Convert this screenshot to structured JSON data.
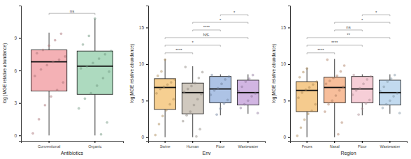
{
  "chart_data": [
    {
      "type": "box",
      "x_label": "Antibiotics",
      "y_label": "log (MGE relative abundance)",
      "categories": [
        "Conventional",
        "Organic"
      ],
      "colors": [
        "#f2a3a8",
        "#9fd3b4"
      ],
      "ylim": [
        -0.5,
        12
      ],
      "yticks": [
        0,
        3,
        6,
        9
      ],
      "boxes": [
        {
          "whisker_low": 0,
          "q1": 4.1,
          "median": 6.8,
          "q3": 7.9,
          "whisker_high": 9.5
        },
        {
          "whisker_low": 0,
          "q1": 3.8,
          "median": 6.4,
          "q3": 7.8,
          "whisker_high": 10.8
        }
      ],
      "points": [
        [
          0.2,
          1.5,
          2.8,
          3.6,
          4.2,
          4.9,
          5.5,
          6.1,
          6.5,
          6.8,
          7.0,
          7.3,
          7.6,
          7.9,
          8.3,
          8.8,
          9.4
        ],
        [
          0.1,
          1.2,
          2.5,
          3.4,
          3.9,
          4.6,
          5.3,
          5.9,
          6.2,
          6.4,
          6.7,
          7.1,
          7.5,
          7.8,
          8.4,
          9.2,
          10.8
        ]
      ],
      "comparisons": [
        {
          "groups": [
            0,
            1
          ],
          "label": "ns"
        }
      ]
    },
    {
      "type": "box",
      "x_label": "Env",
      "y_label": "log(MGE relative abundance)",
      "categories": [
        "Swine",
        "Human",
        "Floor",
        "Wastewater"
      ],
      "colors": [
        "#f5c77e",
        "#c8c0b4",
        "#9fb8e0",
        "#c9a8dd"
      ],
      "ylim": [
        -0.5,
        18
      ],
      "yticks": [
        0,
        5,
        10,
        15
      ],
      "boxes": [
        {
          "whisker_low": 0,
          "q1": 3.8,
          "median": 6.8,
          "q3": 8.0,
          "whisker_high": 10.7
        },
        {
          "whisker_low": 0,
          "q1": 3.2,
          "median": 6.1,
          "q3": 7.4,
          "whisker_high": 9.7
        },
        {
          "whisker_low": 3,
          "q1": 4.7,
          "median": 6.6,
          "q3": 8.3,
          "whisker_high": 8.6
        },
        {
          "whisker_low": 3.2,
          "q1": 4.4,
          "median": 6.1,
          "q3": 7.8,
          "whisker_high": 8.6
        }
      ],
      "points": [
        [
          0.3,
          1.8,
          2.9,
          3.7,
          4.5,
          5.2,
          6.0,
          6.6,
          6.9,
          7.2,
          7.5,
          7.9,
          8.4,
          9.0,
          10.6
        ],
        [
          0.1,
          1.1,
          2.2,
          3.0,
          3.5,
          4.4,
          5.2,
          5.9,
          6.2,
          6.6,
          7.0,
          7.4,
          8.1,
          8.9,
          9.6
        ],
        [
          3.1,
          3.9,
          4.6,
          5.1,
          5.8,
          6.4,
          6.7,
          7.3,
          7.9,
          8.3,
          8.5
        ],
        [
          3.3,
          4.0,
          4.5,
          5.0,
          5.6,
          6.0,
          6.3,
          6.9,
          7.6,
          8.0,
          8.5
        ]
      ],
      "comparisons": [
        {
          "groups": [
            0,
            1
          ],
          "label": "****"
        },
        {
          "groups": [
            0,
            2
          ],
          "label": "*"
        },
        {
          "groups": [
            0,
            3
          ],
          "label": "NS."
        },
        {
          "groups": [
            1,
            2
          ],
          "label": "****"
        },
        {
          "groups": [
            1,
            3
          ],
          "label": "*"
        },
        {
          "groups": [
            2,
            3
          ],
          "label": "*"
        }
      ]
    },
    {
      "type": "box",
      "x_label": "Region",
      "y_label": "log(MGE relative abundance)",
      "categories": [
        "Feces",
        "Nasal",
        "Floor",
        "Wastewater"
      ],
      "colors": [
        "#f3c27a",
        "#f6b38a",
        "#f4c6d0",
        "#b7d3ec"
      ],
      "ylim": [
        -0.5,
        18
      ],
      "yticks": [
        0,
        5,
        10,
        15
      ],
      "boxes": [
        {
          "whisker_low": 0,
          "q1": 3.5,
          "median": 6.4,
          "q3": 7.6,
          "whisker_high": 9.5
        },
        {
          "whisker_low": 0,
          "q1": 4.7,
          "median": 6.8,
          "q3": 8.2,
          "whisker_high": 10.7
        },
        {
          "whisker_low": 3,
          "q1": 4.7,
          "median": 6.6,
          "q3": 8.3,
          "whisker_high": 8.6
        },
        {
          "whisker_low": 3.2,
          "q1": 4.4,
          "median": 6.1,
          "q3": 7.8,
          "whisker_high": 8.6
        }
      ],
      "points": [
        [
          0.2,
          1.3,
          2.4,
          3.2,
          3.6,
          4.5,
          5.4,
          6.1,
          6.5,
          6.8,
          7.2,
          7.6,
          8.2,
          8.9,
          9.4
        ],
        [
          0.4,
          2.0,
          3.5,
          4.5,
          5.0,
          5.7,
          6.4,
          6.9,
          7.3,
          7.7,
          8.1,
          8.4,
          9.0,
          9.8,
          10.6
        ],
        [
          3.1,
          3.9,
          4.6,
          5.1,
          5.8,
          6.4,
          6.7,
          7.3,
          7.9,
          8.3,
          8.5
        ],
        [
          3.3,
          4.0,
          4.5,
          5.0,
          5.6,
          6.0,
          6.3,
          6.9,
          7.6,
          8.0,
          8.5
        ]
      ],
      "comparisons": [
        {
          "groups": [
            0,
            1
          ],
          "label": "****"
        },
        {
          "groups": [
            0,
            2
          ],
          "label": "****"
        },
        {
          "groups": [
            0,
            3
          ],
          "label": "**"
        },
        {
          "groups": [
            1,
            2
          ],
          "label": "ns"
        },
        {
          "groups": [
            1,
            3
          ],
          "label": "*"
        },
        {
          "groups": [
            2,
            3
          ],
          "label": "*"
        }
      ]
    }
  ]
}
